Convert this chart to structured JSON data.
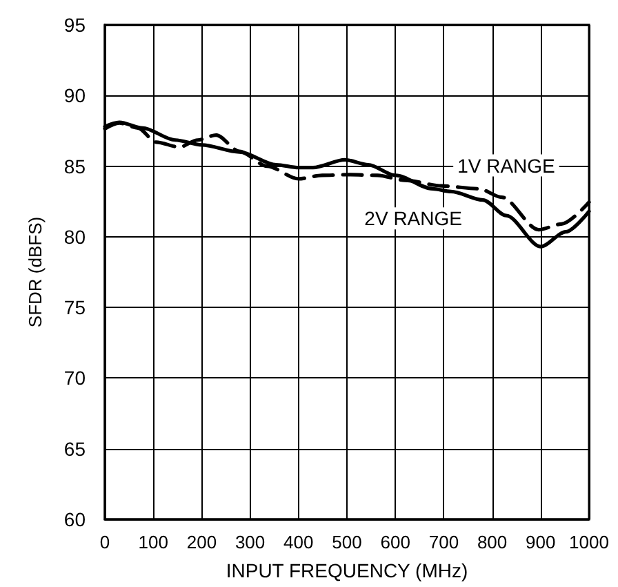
{
  "chart_data": {
    "type": "line",
    "xlabel": "INPUT FREQUENCY (MHz)",
    "ylabel": "SFDR (dBFS)",
    "xlim": [
      0,
      1000
    ],
    "xticks": [
      0,
      100,
      200,
      300,
      400,
      500,
      600,
      700,
      800,
      900,
      1000
    ],
    "ylim": [
      60,
      95
    ],
    "yticks": [
      60,
      65,
      70,
      75,
      80,
      85,
      90,
      95
    ],
    "grid": true,
    "legend": false,
    "marker": "none",
    "series": [
      {
        "name": "1V RANGE",
        "color": "#000000",
        "line_style": "dashed",
        "x": [
          0,
          30,
          68,
          106,
          154,
          192,
          230,
          278,
          335,
          400,
          449,
          506,
          563,
          620,
          696,
          772,
          820,
          896,
          943,
          1000
        ],
        "values": [
          87.65,
          88.05,
          87.7,
          86.7,
          86.35,
          86.85,
          87.2,
          86.05,
          85.0,
          84.1,
          84.35,
          84.4,
          84.35,
          84.0,
          83.6,
          83.4,
          82.8,
          80.5,
          80.9,
          82.45
        ]
      },
      {
        "name": "2V RANGE",
        "color": "#000000",
        "line_style": "solid",
        "x": [
          0,
          30,
          78,
          145,
          200,
          278,
          354,
          400,
          430,
          496,
          544,
          600,
          677,
          715,
          781,
          829,
          900,
          952,
          1000
        ],
        "values": [
          87.8,
          88.1,
          87.7,
          86.85,
          86.5,
          86.0,
          85.1,
          84.9,
          84.9,
          85.45,
          85.1,
          84.35,
          83.4,
          83.2,
          82.6,
          81.5,
          79.3,
          80.35,
          81.8
        ]
      }
    ]
  }
}
